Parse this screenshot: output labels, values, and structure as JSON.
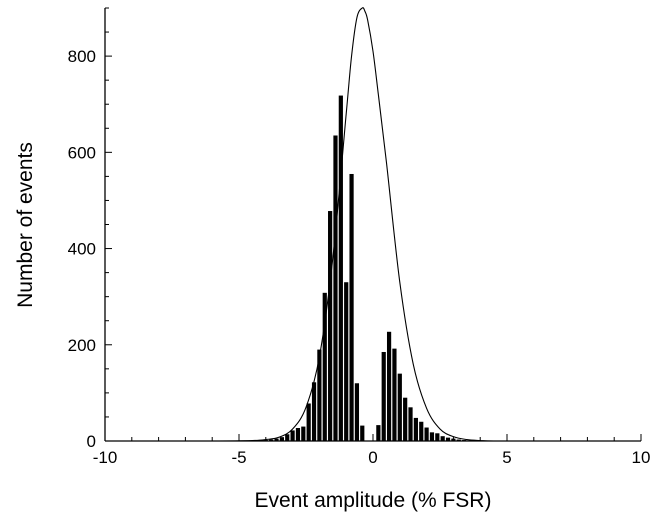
{
  "chart_data": {
    "type": "bar",
    "title": "",
    "xlabel": "Event amplitude (% FSR)",
    "ylabel": "Number of events",
    "xlim": [
      -10,
      10
    ],
    "ylim": [
      0,
      900
    ],
    "x_ticks": [
      -10,
      -5,
      0,
      5,
      10
    ],
    "y_ticks": [
      0,
      200,
      400,
      600,
      800
    ],
    "x_tick_labels": [
      "-10",
      "-5",
      "0",
      "5",
      "10"
    ],
    "y_tick_labels": [
      "0",
      "200",
      "400",
      "600",
      "800"
    ],
    "grid": false,
    "legend": "none",
    "colors": {
      "bars": "#000000",
      "curve": "#000000",
      "axes": "#000000"
    },
    "series": [
      {
        "type": "bar",
        "x": [
          -4.2,
          -4.0,
          -3.8,
          -3.6,
          -3.4,
          -3.2,
          -3.0,
          -2.8,
          -2.6,
          -2.4,
          -2.2,
          -2.0,
          -1.8,
          -1.6,
          -1.4,
          -1.2,
          -1.0,
          -0.8,
          -0.6,
          -0.4,
          -0.2,
          0.2,
          0.4,
          0.6,
          0.8,
          1.0,
          1.2,
          1.4,
          1.6,
          1.8,
          2.0,
          2.2,
          2.4,
          2.6,
          2.8,
          3.0,
          3.2,
          3.4,
          3.6,
          3.8,
          4.0
        ],
        "values": [
          1,
          2,
          3,
          5,
          8,
          14,
          22,
          27,
          30,
          78,
          122,
          190,
          308,
          478,
          635,
          718,
          330,
          555,
          120,
          32,
          0,
          33,
          185,
          227,
          192,
          140,
          90,
          70,
          48,
          40,
          28,
          18,
          16,
          10,
          7,
          5,
          3,
          2,
          1,
          1,
          1
        ]
      },
      {
        "type": "line",
        "x": [
          -10,
          -6,
          -4.5,
          -4.0,
          -3.5,
          -3.0,
          -2.5,
          -2.0,
          -1.5,
          -1.0,
          -0.8,
          -0.6,
          -0.4,
          -0.3,
          -0.2,
          0.0,
          0.2,
          0.5,
          1.0,
          1.5,
          2.0,
          2.5,
          3.0,
          3.5,
          4.0,
          4.5,
          6,
          10
        ],
        "values": [
          0,
          0,
          1,
          3,
          8,
          25,
          70,
          175,
          380,
          680,
          800,
          880,
          900,
          893,
          875,
          810,
          720,
          580,
          330,
          160,
          68,
          25,
          9,
          3,
          1,
          0,
          0,
          0
        ]
      }
    ]
  }
}
